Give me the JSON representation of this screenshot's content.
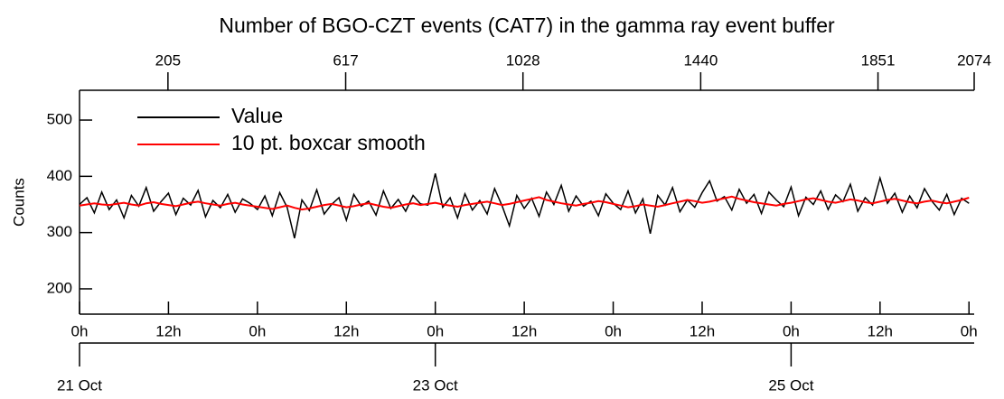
{
  "chart_data": {
    "type": "line",
    "title": "Number of BGO-CZT events (CAT7) in the gamma ray event buffer",
    "ylabel": "Counts",
    "legend": "upper left",
    "x": [
      0,
      1,
      2,
      3,
      4,
      5,
      6,
      7,
      8,
      9,
      10,
      11,
      12,
      13,
      14,
      15,
      16,
      17,
      18,
      19,
      20,
      21,
      22,
      23,
      24,
      25,
      26,
      27,
      28,
      29,
      30,
      31,
      32,
      33,
      34,
      35,
      36,
      37,
      38,
      39,
      40,
      41,
      42,
      43,
      44,
      45,
      46,
      47,
      48,
      49,
      50,
      51,
      52,
      53,
      54,
      55,
      56,
      57,
      58,
      59,
      60,
      61,
      62,
      63,
      64,
      65,
      66,
      67,
      68,
      69,
      70,
      71,
      72,
      73,
      74,
      75,
      76,
      77,
      78,
      79,
      80,
      81,
      82,
      83,
      84,
      85,
      86,
      87,
      88,
      89,
      90,
      91,
      92,
      93,
      94,
      95,
      96,
      97,
      98,
      99,
      100,
      101,
      102,
      103,
      104,
      105,
      106,
      107,
      108,
      109,
      110,
      111,
      112,
      113,
      114,
      115,
      116,
      117,
      118,
      119,
      120
    ],
    "series": [
      {
        "name": "Value",
        "color": "#000000",
        "values": [
          350,
          362,
          335,
          372,
          341,
          358,
          326,
          366,
          347,
          380,
          338,
          355,
          370,
          332,
          361,
          349,
          375,
          328,
          357,
          344,
          368,
          336,
          360,
          352,
          341,
          365,
          330,
          371,
          345,
          290,
          358,
          339,
          376,
          333,
          350,
          362,
          322,
          368,
          347,
          356,
          331,
          374,
          343,
          359,
          338,
          366,
          351,
          349,
          405,
          345,
          362,
          326,
          369,
          340,
          357,
          333,
          378,
          348,
          312,
          366,
          343,
          361,
          329,
          372,
          350,
          384,
          338,
          365,
          347,
          356,
          330,
          369,
          352,
          341,
          374,
          335,
          360,
          298,
          366,
          349,
          380,
          337,
          358,
          345,
          371,
          392,
          356,
          364,
          340,
          377,
          352,
          368,
          334,
          372,
          358,
          346,
          381,
          330,
          363,
          350,
          374,
          341,
          367,
          355,
          386,
          338,
          362,
          349,
          397,
          352,
          370,
          336,
          365,
          344,
          378,
          356,
          340,
          368,
          332,
          361,
          352
        ]
      },
      {
        "name": "10 pt. boxcar smooth",
        "color": "#ff0000",
        "values": [
          348,
          350,
          352,
          350,
          349,
          351,
          353,
          350,
          348,
          352,
          354,
          351,
          349,
          347,
          350,
          353,
          355,
          352,
          350,
          348,
          351,
          353,
          350,
          348,
          346,
          344,
          342,
          345,
          348,
          344,
          341,
          343,
          346,
          349,
          351,
          348,
          345,
          347,
          350,
          352,
          349,
          346,
          344,
          347,
          350,
          352,
          349,
          351,
          353,
          350,
          348,
          346,
          349,
          351,
          353,
          355,
          352,
          349,
          351,
          354,
          357,
          360,
          363,
          358,
          355,
          352,
          350,
          348,
          351,
          353,
          356,
          354,
          351,
          348,
          345,
          347,
          350,
          348,
          346,
          349,
          352,
          355,
          358,
          356,
          353,
          355,
          358,
          361,
          364,
          360,
          357,
          354,
          352,
          350,
          348,
          351,
          353,
          356,
          359,
          361,
          358,
          355,
          353,
          356,
          359,
          357,
          354,
          352,
          355,
          358,
          360,
          357,
          354,
          352,
          355,
          357,
          354,
          352,
          355,
          358,
          362
        ]
      }
    ],
    "xlim": [
      0,
      120.7
    ],
    "xticks": [
      {
        "value": 0,
        "label": "0h"
      },
      {
        "value": 12,
        "label": "12h"
      },
      {
        "value": 24,
        "label": "0h"
      },
      {
        "value": 36,
        "label": "12h"
      },
      {
        "value": 48,
        "label": "0h"
      },
      {
        "value": 60,
        "label": "12h"
      },
      {
        "value": 72,
        "label": "0h"
      },
      {
        "value": 84,
        "label": "12h"
      },
      {
        "value": 96,
        "label": "0h"
      },
      {
        "value": 108,
        "label": "12h"
      },
      {
        "value": 120,
        "label": "0h"
      }
    ],
    "date_ticks": [
      {
        "value": 0,
        "label": "21 Oct"
      },
      {
        "value": 48,
        "label": "23 Oct"
      },
      {
        "value": 96,
        "label": "25 Oct"
      }
    ],
    "x2lim": [
      0,
      2074
    ],
    "x2ticks": [
      205,
      617,
      1028,
      1440,
      1851,
      2074
    ],
    "ylim": [
      155,
      553
    ],
    "yticks": [
      200,
      300,
      400,
      500
    ]
  }
}
